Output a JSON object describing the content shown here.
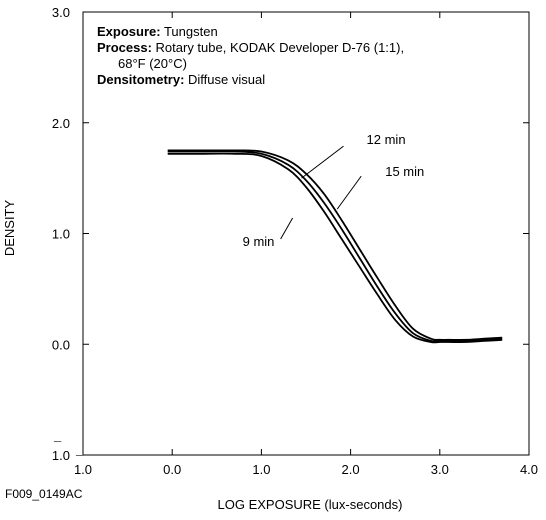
{
  "figure_id": "F009_0149AC",
  "info": {
    "exposure_label": "Exposure:",
    "exposure_value": " Tungsten",
    "process_label": "Process:",
    "process_value": " Rotary tube, KODAK Developer D-76 (1:1),",
    "process_value_cont": "68°F (20°C)",
    "densitometry_label": "Densitometry:",
    "densitometry_value": " Diffuse visual"
  },
  "chart_data": {
    "type": "line",
    "title": "",
    "xlabel": "LOG EXPOSURE (lux-seconds)",
    "ylabel": "DENSITY",
    "xlim": [
      -1.0,
      4.0
    ],
    "ylim": [
      -1.0,
      3.0
    ],
    "grid": false,
    "x_ticks": [
      {
        "value": -1.0,
        "label": "1.0",
        "bar": true
      },
      {
        "value": 0.0,
        "label": "0.0",
        "bar": false
      },
      {
        "value": 1.0,
        "label": "1.0",
        "bar": false
      },
      {
        "value": 2.0,
        "label": "2.0",
        "bar": false
      },
      {
        "value": 3.0,
        "label": "3.0",
        "bar": false
      },
      {
        "value": 4.0,
        "label": "4.0",
        "bar": false
      }
    ],
    "y_ticks": [
      {
        "value": -1.0,
        "label": "1.0",
        "bar": true
      },
      {
        "value": 0.0,
        "label": "0.0",
        "bar": false
      },
      {
        "value": 1.0,
        "label": "1.0",
        "bar": false
      },
      {
        "value": 2.0,
        "label": "2.0",
        "bar": false
      },
      {
        "value": 3.0,
        "label": "3.0",
        "bar": false
      }
    ],
    "series": [
      {
        "name": "9 min",
        "x": [
          -0.05,
          0.3,
          0.7,
          1.0,
          1.3,
          1.5,
          1.7,
          1.9,
          2.1,
          2.3,
          2.5,
          2.7,
          2.9,
          3.0,
          3.1,
          3.3,
          3.5,
          3.7
        ],
        "y": [
          1.72,
          1.72,
          1.72,
          1.7,
          1.58,
          1.42,
          1.2,
          0.95,
          0.7,
          0.45,
          0.22,
          0.07,
          0.02,
          0.02,
          0.02,
          0.02,
          0.03,
          0.04
        ]
      },
      {
        "name": "12 min",
        "x": [
          -0.05,
          0.3,
          0.7,
          1.0,
          1.3,
          1.5,
          1.7,
          1.9,
          2.1,
          2.3,
          2.5,
          2.7,
          2.9,
          3.0,
          3.1,
          3.3,
          3.5,
          3.7
        ],
        "y": [
          1.74,
          1.74,
          1.74,
          1.72,
          1.62,
          1.48,
          1.28,
          1.04,
          0.78,
          0.52,
          0.28,
          0.1,
          0.03,
          0.03,
          0.03,
          0.03,
          0.04,
          0.05
        ]
      },
      {
        "name": "15 min",
        "x": [
          -0.05,
          0.3,
          0.7,
          1.0,
          1.3,
          1.5,
          1.7,
          1.9,
          2.1,
          2.3,
          2.5,
          2.7,
          2.9,
          3.0,
          3.1,
          3.3,
          3.5,
          3.7
        ],
        "y": [
          1.75,
          1.75,
          1.75,
          1.74,
          1.66,
          1.54,
          1.36,
          1.12,
          0.86,
          0.6,
          0.35,
          0.14,
          0.05,
          0.04,
          0.04,
          0.04,
          0.05,
          0.06
        ]
      }
    ],
    "annotations": [
      {
        "text": "12 min",
        "series": "12 min",
        "x": 1.45,
        "y": 1.5
      },
      {
        "text": "15 min",
        "series": "15 min",
        "x": 1.85,
        "y": 1.22
      },
      {
        "text": "9 min",
        "series": "9 min",
        "x": 1.35,
        "y": 1.14
      }
    ]
  }
}
